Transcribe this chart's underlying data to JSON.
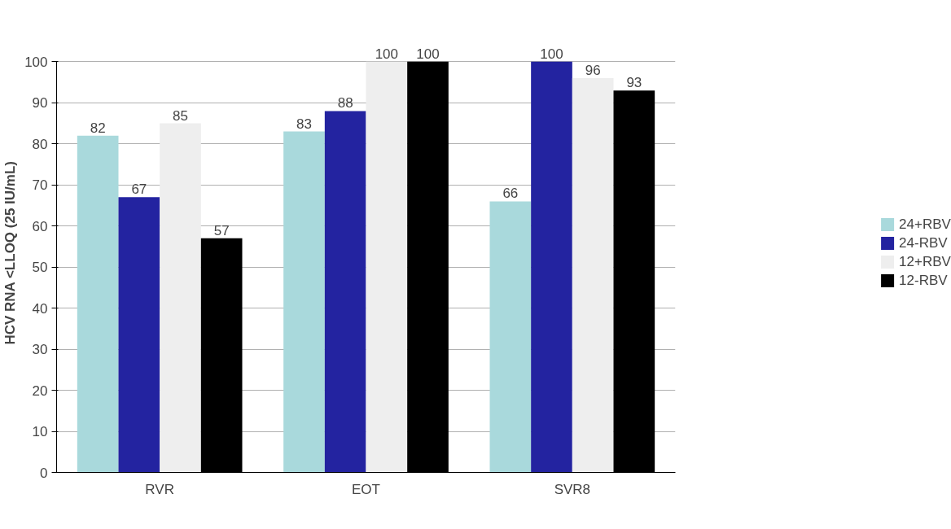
{
  "chart_data": {
    "type": "bar",
    "ylabel": "HCV RNA <LLOQ (25 IU/mL)",
    "categories": [
      "RVR",
      "EOT",
      "SVR8"
    ],
    "series": [
      {
        "name": "24+RBV",
        "color": "#a9d9dc",
        "values": [
          82,
          83,
          66
        ]
      },
      {
        "name": "24-RBV",
        "color": "#2323a0",
        "values": [
          67,
          88,
          100
        ]
      },
      {
        "name": "12+RBV",
        "color": "#eeeeee",
        "values": [
          85,
          100,
          96
        ]
      },
      {
        "name": "12-RBV",
        "color": "#000000",
        "values": [
          57,
          100,
          93
        ]
      }
    ],
    "ylim": [
      0,
      100
    ],
    "yticks": [
      0,
      10,
      20,
      30,
      40,
      50,
      60,
      70,
      80,
      90,
      100
    ],
    "grid": "y",
    "legend": "right",
    "data_labels": true
  }
}
